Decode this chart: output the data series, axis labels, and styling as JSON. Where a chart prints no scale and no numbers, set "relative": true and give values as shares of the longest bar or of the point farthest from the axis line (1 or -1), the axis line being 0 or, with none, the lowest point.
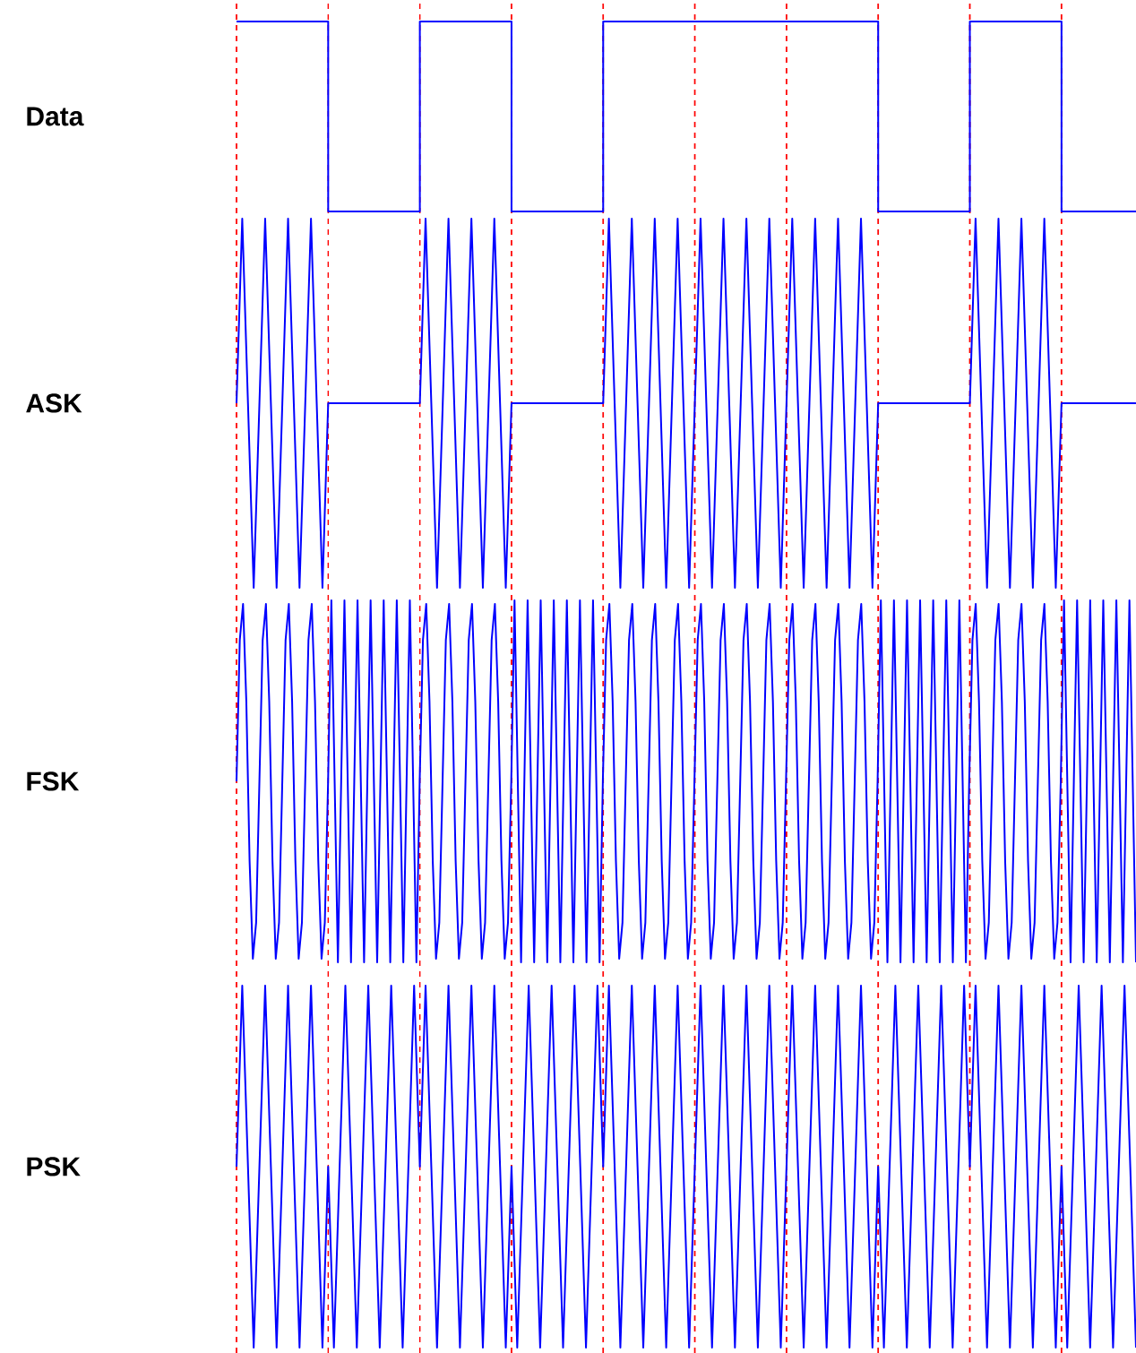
{
  "chart_data": [
    {
      "type": "step",
      "ylabel": "Data",
      "relative": true,
      "color": "#0000ff",
      "categories": [
        null,
        null,
        null,
        null,
        null,
        null,
        null,
        null,
        null,
        null,
        null,
        null,
        null,
        null,
        null,
        null,
        null,
        null,
        null,
        null,
        null,
        null,
        null,
        null,
        null,
        null,
        null,
        null,
        null,
        null,
        null,
        null,
        null,
        null,
        null,
        null,
        null,
        null,
        null,
        null,
        null,
        null,
        null,
        null,
        null,
        null,
        null,
        null,
        null,
        null,
        null,
        null,
        null,
        null,
        null,
        null,
        null,
        null,
        null,
        null,
        null,
        null,
        null,
        null,
        null,
        null,
        null,
        null,
        null,
        null,
        null,
        null,
        null,
        null,
        null,
        null,
        null,
        null,
        null,
        null,
        null,
        null,
        null,
        null,
        null,
        null,
        null,
        null,
        null,
        null,
        null,
        null,
        null,
        null,
        null,
        null,
        null,
        null,
        null,
        null,
        null,
        null,
        null,
        null,
        null,
        null,
        null,
        null,
        null,
        null,
        null,
        null,
        null,
        null,
        null,
        null,
        null,
        null,
        null,
        null,
        null,
        null,
        null,
        null,
        null,
        null,
        null,
        null,
        null,
        null,
        null,
        null,
        null,
        null,
        null,
        null,
        null,
        null,
        null,
        null,
        null,
        null,
        null,
        null,
        null,
        null,
        null,
        null,
        null,
        null,
        null,
        null,
        null,
        null,
        null,
        null,
        null,
        null
      ],
      "values": [
        1,
        1,
        1,
        1,
        1,
        1,
        1,
        1,
        1,
        1,
        1,
        1,
        1,
        1,
        1,
        1,
        0,
        0,
        0,
        0,
        0,
        0,
        0,
        0,
        0,
        0,
        0,
        0,
        0,
        0,
        0,
        0,
        1,
        1,
        1,
        1,
        1,
        1,
        1,
        1,
        1,
        1,
        1,
        1,
        1,
        1,
        1,
        1,
        0,
        0,
        0,
        0,
        0,
        0,
        0,
        0,
        0,
        0,
        0,
        0,
        0,
        0,
        0,
        0,
        1,
        1,
        1,
        1,
        1,
        1,
        1,
        1,
        1,
        1,
        1,
        1,
        1,
        1,
        1,
        1,
        1,
        1,
        1,
        1,
        1,
        1,
        1,
        1,
        1,
        1,
        1,
        1,
        1,
        1,
        1,
        1,
        1,
        1,
        1,
        1,
        1,
        1,
        1,
        1,
        1,
        1,
        1,
        1,
        1,
        1,
        1,
        1,
        0,
        0,
        0,
        0,
        0,
        0,
        0,
        0,
        0,
        0,
        0,
        0,
        0,
        0,
        0,
        0,
        1,
        1,
        1,
        1,
        1,
        1,
        1,
        1,
        1,
        1,
        1,
        1,
        1,
        1,
        1,
        1,
        0,
        0,
        0,
        0,
        0,
        0,
        0,
        0,
        0,
        0,
        0,
        0,
        0,
        0
      ]
    },
    {
      "type": "line",
      "ylabel": "ASK",
      "relative": true,
      "color": "#0000ff",
      "categories": [
        null,
        null,
        null,
        null,
        null,
        null,
        null,
        null,
        null,
        null,
        null,
        null,
        null,
        null,
        null,
        null,
        null,
        null,
        null,
        null,
        null,
        null,
        null,
        null,
        null,
        null,
        null,
        null,
        null,
        null,
        null,
        null,
        null,
        null,
        null,
        null,
        null,
        null,
        null,
        null,
        null,
        null,
        null,
        null,
        null,
        null,
        null,
        null,
        null,
        null,
        null,
        null,
        null,
        null,
        null,
        null,
        null,
        null,
        null,
        null,
        null,
        null,
        null,
        null,
        null,
        null,
        null,
        null,
        null,
        null,
        null,
        null,
        null,
        null,
        null,
        null,
        null,
        null,
        null,
        null,
        null,
        null,
        null,
        null,
        null,
        null,
        null,
        null,
        null,
        null,
        null,
        null,
        null,
        null,
        null,
        null,
        null,
        null,
        null,
        null,
        null,
        null,
        null,
        null,
        null,
        null,
        null,
        null,
        null,
        null,
        null,
        null,
        null,
        null,
        null,
        null,
        null,
        null,
        null,
        null,
        null,
        null,
        null,
        null,
        null,
        null,
        null,
        null,
        null,
        null,
        null,
        null,
        null,
        null,
        null,
        null,
        null,
        null,
        null,
        null,
        null,
        null,
        null,
        null,
        null,
        null,
        null,
        null,
        null,
        null,
        null,
        null,
        null,
        null,
        null,
        null,
        null,
        null
      ],
      "values": [
        0.5,
        1,
        0.5,
        0,
        0.5,
        1,
        0.5,
        0,
        0.5,
        1,
        0.5,
        0,
        0.5,
        1,
        0.5,
        0,
        0.5,
        0.5,
        0.5,
        0.5,
        0.5,
        0.5,
        0.5,
        0.5,
        0.5,
        0.5,
        0.5,
        0.5,
        0.5,
        0.5,
        0.5,
        0.5,
        0.5,
        1,
        0.5,
        0,
        0.5,
        1,
        0.5,
        0,
        0.5,
        1,
        0.5,
        0,
        0.5,
        1,
        0.5,
        0,
        0.5,
        0.5,
        0.5,
        0.5,
        0.5,
        0.5,
        0.5,
        0.5,
        0.5,
        0.5,
        0.5,
        0.5,
        0.5,
        0.5,
        0.5,
        0.5,
        0.5,
        1,
        0.5,
        0,
        0.5,
        1,
        0.5,
        0,
        0.5,
        1,
        0.5,
        0,
        0.5,
        1,
        0.5,
        0,
        0.5,
        1,
        0.5,
        0,
        0.5,
        1,
        0.5,
        0,
        0.5,
        1,
        0.5,
        0,
        0.5,
        1,
        0.5,
        0,
        0.5,
        1,
        0.5,
        0,
        0.5,
        1,
        0.5,
        0,
        0.5,
        1,
        0.5,
        0,
        0.5,
        1,
        0.5,
        0,
        0.5,
        0.5,
        0.5,
        0.5,
        0.5,
        0.5,
        0.5,
        0.5,
        0.5,
        0.5,
        0.5,
        0.5,
        0.5,
        0.5,
        0.5,
        0.5,
        0.5,
        1,
        0.5,
        0,
        0.5,
        1,
        0.5,
        0,
        0.5,
        1,
        0.5,
        0,
        0.5,
        1,
        0.5,
        0,
        0.5,
        0.5,
        0.5,
        0.5,
        0.5,
        0.5,
        0.5,
        0.5,
        0.5,
        0.5,
        0.5,
        0.5,
        0.5,
        0.5
      ]
    },
    {
      "type": "line",
      "ylabel": "FSK",
      "relative": true,
      "color": "#0000ff",
      "categories": [
        null,
        null,
        null,
        null,
        null,
        null,
        null,
        null,
        null,
        null,
        null,
        null,
        null,
        null,
        null,
        null,
        null,
        null,
        null,
        null,
        null,
        null,
        null,
        null,
        null,
        null,
        null,
        null,
        null,
        null,
        null,
        null,
        null,
        null,
        null,
        null,
        null,
        null,
        null,
        null,
        null,
        null,
        null,
        null,
        null,
        null,
        null,
        null,
        null,
        null,
        null,
        null,
        null,
        null,
        null,
        null,
        null,
        null,
        null,
        null,
        null,
        null,
        null,
        null,
        null,
        null,
        null,
        null,
        null,
        null,
        null,
        null,
        null,
        null,
        null,
        null,
        null,
        null,
        null,
        null,
        null,
        null,
        null,
        null,
        null,
        null,
        null,
        null,
        null,
        null,
        null,
        null,
        null,
        null,
        null,
        null,
        null,
        null,
        null,
        null,
        null,
        null,
        null,
        null,
        null,
        null,
        null,
        null,
        null,
        null,
        null,
        null,
        null,
        null,
        null,
        null,
        null,
        null,
        null,
        null,
        null,
        null,
        null,
        null,
        null,
        null,
        null,
        null,
        null,
        null,
        null,
        null,
        null,
        null,
        null,
        null,
        null,
        null,
        null,
        null,
        null,
        null,
        null,
        null,
        null,
        null,
        null,
        null,
        null,
        null,
        null,
        null,
        null,
        null,
        null,
        null,
        null,
        null,
        null,
        null,
        null,
        null,
        null,
        null,
        null,
        null,
        null,
        null,
        null,
        null,
        null,
        null,
        null,
        null,
        null,
        null,
        null,
        null,
        null,
        null,
        null,
        null,
        null,
        null,
        null,
        null,
        null,
        null,
        null,
        null,
        null,
        null,
        null,
        null,
        null,
        null,
        null,
        null,
        null,
        null,
        null,
        null,
        null,
        null,
        null,
        null,
        null,
        null,
        null,
        null,
        null,
        null,
        null,
        null,
        null,
        null,
        null,
        null,
        null,
        null,
        null,
        null,
        null,
        null,
        null,
        null,
        null,
        null,
        null,
        null,
        null,
        null,
        null,
        null,
        null,
        null,
        null,
        null,
        null,
        null,
        null,
        null,
        null,
        null,
        null,
        null,
        null,
        null,
        null,
        null,
        null,
        null,
        null,
        null,
        null,
        null,
        null,
        null,
        null,
        null,
        null,
        null,
        null,
        null,
        null,
        null,
        null,
        null,
        null,
        null,
        null,
        null,
        null,
        null,
        null,
        null
      ],
      "values": [
        0.5,
        0.89,
        0.99,
        0.72,
        0.28,
        0.01,
        0.11,
        0.5,
        0.89,
        0.99,
        0.72,
        0.28,
        0.01,
        0.11,
        0.5,
        0.89,
        0.99,
        0.72,
        0.28,
        0.01,
        0.11,
        0.5,
        0.89,
        0.99,
        0.72,
        0.28,
        0.01,
        0.11,
        0.5,
        1,
        0.5,
        0,
        0.5,
        1,
        0.5,
        0,
        0.5,
        1,
        0.5,
        0,
        0.5,
        1,
        0.5,
        0,
        0.5,
        1,
        0.5,
        0,
        0.5,
        1,
        0.5,
        0,
        0.5,
        1,
        0.5,
        0,
        0.5,
        0.89,
        0.99,
        0.72,
        0.28,
        0.01,
        0.11,
        0.5,
        0.89,
        0.99,
        0.72,
        0.28,
        0.01,
        0.11,
        0.5,
        0.89,
        0.99,
        0.72,
        0.28,
        0.01,
        0.11,
        0.5,
        0.89,
        0.99,
        0.72,
        0.28,
        0.01,
        0.11,
        0.5,
        1,
        0.5,
        0,
        0.5,
        1,
        0.5,
        0,
        0.5,
        1,
        0.5,
        0,
        0.5,
        1,
        0.5,
        0,
        0.5,
        1,
        0.5,
        0,
        0.5,
        1,
        0.5,
        0,
        0.5,
        1,
        0.5,
        0,
        0.5,
        0.89,
        0.99,
        0.72,
        0.28,
        0.01,
        0.11,
        0.5,
        0.89,
        0.99,
        0.72,
        0.28,
        0.01,
        0.11,
        0.5,
        0.89,
        0.99,
        0.72,
        0.28,
        0.01,
        0.11,
        0.5,
        0.89,
        0.99,
        0.72,
        0.28,
        0.01,
        0.11,
        0.5,
        0.89,
        0.99,
        0.72,
        0.28,
        0.01,
        0.11,
        0.5,
        0.89,
        0.99,
        0.72,
        0.28,
        0.01,
        0.11,
        0.5,
        0.89,
        0.99,
        0.72,
        0.28,
        0.01,
        0.11,
        0.5,
        0.89,
        0.99,
        0.72,
        0.28,
        0.01,
        0.11,
        0.5,
        0.89,
        0.99,
        0.72,
        0.28,
        0.01,
        0.11,
        0.5,
        0.89,
        0.99,
        0.72,
        0.28,
        0.01,
        0.11,
        0.5,
        0.89,
        0.99,
        0.72,
        0.28,
        0.01,
        0.11,
        0.5,
        0.89,
        0.99,
        0.72,
        0.28,
        0.01,
        0.11,
        0.5,
        1,
        0.5,
        0,
        0.5,
        1,
        0.5,
        0,
        0.5,
        1,
        0.5,
        0,
        0.5,
        1,
        0.5,
        0,
        0.5,
        1,
        0.5,
        0,
        0.5,
        1,
        0.5,
        0,
        0.5,
        1,
        0.5,
        0,
        0.5,
        0.89,
        0.99,
        0.72,
        0.28,
        0.01,
        0.11,
        0.5,
        0.89,
        0.99,
        0.72,
        0.28,
        0.01,
        0.11,
        0.5,
        0.89,
        0.99,
        0.72,
        0.28,
        0.01,
        0.11,
        0.5,
        0.89,
        0.99,
        0.72,
        0.28,
        0.01,
        0.11,
        0.5,
        1,
        0.5,
        0,
        0.5,
        1,
        0.5,
        0,
        0.5,
        1,
        0.5,
        0,
        0.5,
        1,
        0.5,
        0,
        0.5,
        1,
        0.5,
        0,
        0.5,
        1,
        0.5,
        0
      ]
    },
    {
      "type": "line",
      "ylabel": "PSK",
      "relative": true,
      "color": "#0000ff",
      "categories": [
        null,
        null,
        null,
        null,
        null,
        null,
        null,
        null,
        null,
        null,
        null,
        null,
        null,
        null,
        null,
        null,
        null,
        null,
        null,
        null,
        null,
        null,
        null,
        null,
        null,
        null,
        null,
        null,
        null,
        null,
        null,
        null,
        null,
        null,
        null,
        null,
        null,
        null,
        null,
        null,
        null,
        null,
        null,
        null,
        null,
        null,
        null,
        null,
        null,
        null,
        null,
        null,
        null,
        null,
        null,
        null,
        null,
        null,
        null,
        null,
        null,
        null,
        null,
        null,
        null,
        null,
        null,
        null,
        null,
        null,
        null,
        null,
        null,
        null,
        null,
        null,
        null,
        null,
        null,
        null,
        null,
        null,
        null,
        null,
        null,
        null,
        null,
        null,
        null,
        null,
        null,
        null,
        null,
        null,
        null,
        null,
        null,
        null,
        null,
        null,
        null,
        null,
        null,
        null,
        null,
        null,
        null,
        null,
        null,
        null,
        null,
        null,
        null,
        null,
        null,
        null,
        null,
        null,
        null,
        null,
        null,
        null,
        null,
        null,
        null,
        null,
        null,
        null,
        null,
        null,
        null,
        null,
        null,
        null,
        null,
        null,
        null,
        null,
        null,
        null,
        null,
        null,
        null,
        null,
        null,
        null,
        null,
        null,
        null,
        null,
        null,
        null,
        null,
        null,
        null,
        null,
        null,
        null
      ],
      "values": [
        0.5,
        1,
        0.5,
        0,
        0.5,
        1,
        0.5,
        0,
        0.5,
        1,
        0.5,
        0,
        0.5,
        1,
        0.5,
        0,
        0.5,
        0,
        0.5,
        1,
        0.5,
        0,
        0.5,
        1,
        0.5,
        0,
        0.5,
        1,
        0.5,
        0,
        0.5,
        1,
        0.5,
        1,
        0.5,
        0,
        0.5,
        1,
        0.5,
        0,
        0.5,
        1,
        0.5,
        0,
        0.5,
        1,
        0.5,
        0,
        0.5,
        0,
        0.5,
        1,
        0.5,
        0,
        0.5,
        1,
        0.5,
        0,
        0.5,
        1,
        0.5,
        0,
        0.5,
        1,
        0.5,
        1,
        0.5,
        0,
        0.5,
        1,
        0.5,
        0,
        0.5,
        1,
        0.5,
        0,
        0.5,
        1,
        0.5,
        0,
        0.5,
        1,
        0.5,
        0,
        0.5,
        1,
        0.5,
        0,
        0.5,
        1,
        0.5,
        0,
        0.5,
        1,
        0.5,
        0,
        0.5,
        1,
        0.5,
        0,
        0.5,
        1,
        0.5,
        0,
        0.5,
        1,
        0.5,
        0,
        0.5,
        1,
        0.5,
        0,
        0.5,
        0,
        0.5,
        1,
        0.5,
        0,
        0.5,
        1,
        0.5,
        0,
        0.5,
        1,
        0.5,
        0,
        0.5,
        1,
        0.5,
        1,
        0.5,
        0,
        0.5,
        1,
        0.5,
        0,
        0.5,
        1,
        0.5,
        0,
        0.5,
        1,
        0.5,
        0,
        0.5,
        0,
        0.5,
        1,
        0.5,
        0,
        0.5,
        1,
        0.5,
        0,
        0.5,
        1,
        0.5,
        0
      ]
    }
  ]
}
